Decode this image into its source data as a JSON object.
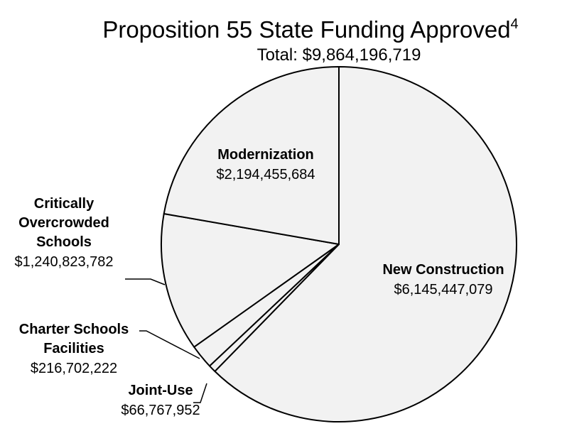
{
  "chart_data": {
    "type": "pie",
    "title": "Proposition 55 State Funding Approved",
    "title_superscript": "4",
    "subtitle": "Total: $9,864,196,719",
    "slices": [
      {
        "key": "new_construction",
        "name_lines": [
          "New Construction"
        ],
        "value": 6145447079,
        "value_label": "$6,145,447,079"
      },
      {
        "key": "joint_use",
        "name_lines": [
          "Joint-Use"
        ],
        "value": 66767952,
        "value_label": "$66,767,952"
      },
      {
        "key": "charter_schools",
        "name_lines": [
          "Charter Schools",
          "Facilities"
        ],
        "value": 216702222,
        "value_label": "$216,702,222"
      },
      {
        "key": "critically_overcrowded",
        "name_lines": [
          "Critically",
          "Overcrowded",
          "Schools"
        ],
        "value": 1240823782,
        "value_label": "$1,240,823,782"
      },
      {
        "key": "modernization",
        "name_lines": [
          "Modernization"
        ],
        "value": 2194455684,
        "value_label": "$2,194,455,684"
      }
    ],
    "slice_fill": "#f2f2f2",
    "slice_stroke": "#000000",
    "legend": "none"
  }
}
